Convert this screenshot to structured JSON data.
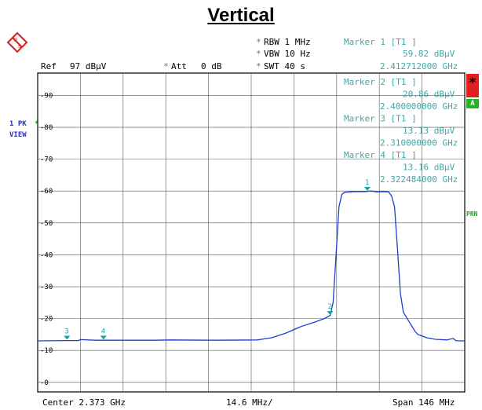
{
  "title": "Vertical",
  "header": {
    "ref_label": "Ref",
    "ref_value": "97 dBµV",
    "att_label": "Att",
    "att_value": "0 dB",
    "rbw": "RBW 1 MHz",
    "vbw": "VBW 10 Hz",
    "swt": "SWT 40 s",
    "star": "*"
  },
  "markers": [
    {
      "label": "Marker 1 [T1 ]",
      "level": "59.82 dBµV",
      "freq": "2.412712000 GHz"
    },
    {
      "label": "Marker 2 [T1 ]",
      "level": "20.86 dBµV",
      "freq": "2.400000000 GHz"
    },
    {
      "label": "Marker 3 [T1 ]",
      "level": "13.13 dBµV",
      "freq": "2.310000000 GHz"
    },
    {
      "label": "Marker 4 [T1 ]",
      "level": "13.16 dBµV",
      "freq": "2.322484000 GHz"
    }
  ],
  "side": {
    "trace_mode": "1 PK",
    "view": "VIEW",
    "flag_star": "*",
    "flag_a": "A",
    "prn": "PRN"
  },
  "footer": {
    "center": "Center 2.373 GHz",
    "div": "14.6 MHz/",
    "span": "Span 146 MHz"
  },
  "colors": {
    "trace": "#1f3fd0",
    "grid": "#555555",
    "marker_text": "#3fa7a7",
    "marker_flag": "#1ea0a0"
  },
  "chart_data": {
    "type": "line",
    "title": "Vertical",
    "x_unit": "GHz",
    "y_unit": "dBµV",
    "xlim": [
      2.3,
      2.446
    ],
    "ylim": [
      -3,
      97
    ],
    "y_ticks": [
      0,
      10,
      20,
      30,
      40,
      50,
      60,
      70,
      80,
      90
    ],
    "series": [
      {
        "x": [
          2.3,
          2.31,
          2.314,
          2.3145,
          2.32,
          2.34,
          2.345,
          2.36,
          2.375,
          2.38,
          2.385,
          2.39,
          2.395,
          2.398,
          2.4,
          2.401,
          2.402,
          2.403,
          2.404,
          2.405,
          2.408,
          2.412,
          2.414,
          2.416,
          2.418,
          2.42,
          2.421,
          2.422,
          2.423,
          2.424,
          2.425,
          2.427,
          2.429,
          2.43,
          2.433,
          2.436,
          2.44,
          2.442,
          2.443,
          2.444,
          2.446
        ],
        "y": [
          13.0,
          13.1,
          13.1,
          13.4,
          13.2,
          13.2,
          13.3,
          13.2,
          13.3,
          14.0,
          15.5,
          17.5,
          19.0,
          20.0,
          21.0,
          25.0,
          40.0,
          55.0,
          59.0,
          59.6,
          59.8,
          59.8,
          60.0,
          59.7,
          59.8,
          59.7,
          58.5,
          55.0,
          42.0,
          28.0,
          22.0,
          19.0,
          16.0,
          15.0,
          14.0,
          13.5,
          13.3,
          13.8,
          13.1,
          13.0,
          13.0
        ]
      }
    ],
    "markers": [
      {
        "id": "1",
        "x": 2.412712,
        "y": 59.82
      },
      {
        "id": "2",
        "x": 2.4,
        "y": 20.86
      },
      {
        "id": "3",
        "x": 2.31,
        "y": 13.13
      },
      {
        "id": "4",
        "x": 2.322484,
        "y": 13.16
      }
    ]
  }
}
